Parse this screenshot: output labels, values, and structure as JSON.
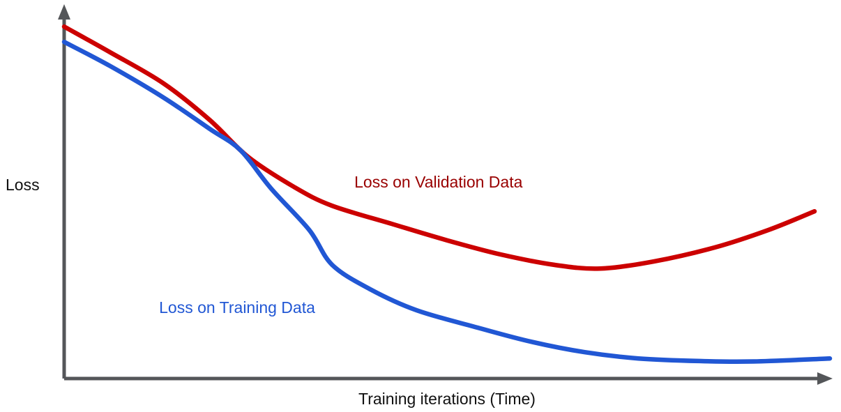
{
  "colors": {
    "background": "#ffffff",
    "axis": "#545659",
    "text": "#111111"
  },
  "chart_data": {
    "type": "line",
    "title": "",
    "xlabel": "Training iterations (Time)",
    "ylabel": "Loss",
    "grid": false,
    "legend_position": "inline-labels",
    "x_axis": {
      "range": [
        0,
        1
      ],
      "ticks": [],
      "arrow": true
    },
    "y_axis": {
      "range": [
        0,
        1
      ],
      "ticks": [],
      "arrow": true
    },
    "series": [
      {
        "id": "validation",
        "name": "Loss on Validation Data",
        "color": "#cc0000",
        "label_color": "#990000",
        "label_anchor": {
          "x": 0.379,
          "y": 0.553
        },
        "points": [
          [
            0.0,
            0.947
          ],
          [
            0.06,
            0.878
          ],
          [
            0.13,
            0.794
          ],
          [
            0.19,
            0.696
          ],
          [
            0.24,
            0.597
          ],
          [
            0.3,
            0.516
          ],
          [
            0.35,
            0.465
          ],
          [
            0.43,
            0.415
          ],
          [
            0.5,
            0.372
          ],
          [
            0.57,
            0.334
          ],
          [
            0.64,
            0.306
          ],
          [
            0.7,
            0.296
          ],
          [
            0.77,
            0.315
          ],
          [
            0.85,
            0.353
          ],
          [
            0.92,
            0.4
          ],
          [
            0.98,
            0.45
          ]
        ]
      },
      {
        "id": "training",
        "name": "Loss on Training Data",
        "color": "#2157d4",
        "label_color": "#2157d4",
        "label_anchor": {
          "x": 0.124,
          "y": 0.216
        },
        "points": [
          [
            0.0,
            0.906
          ],
          [
            0.06,
            0.841
          ],
          [
            0.13,
            0.756
          ],
          [
            0.19,
            0.672
          ],
          [
            0.23,
            0.615
          ],
          [
            0.27,
            0.512
          ],
          [
            0.32,
            0.4
          ],
          [
            0.35,
            0.306
          ],
          [
            0.4,
            0.24
          ],
          [
            0.46,
            0.184
          ],
          [
            0.54,
            0.137
          ],
          [
            0.61,
            0.099
          ],
          [
            0.68,
            0.071
          ],
          [
            0.75,
            0.054
          ],
          [
            0.83,
            0.047
          ],
          [
            0.9,
            0.046
          ],
          [
            1.0,
            0.054
          ]
        ]
      }
    ]
  }
}
